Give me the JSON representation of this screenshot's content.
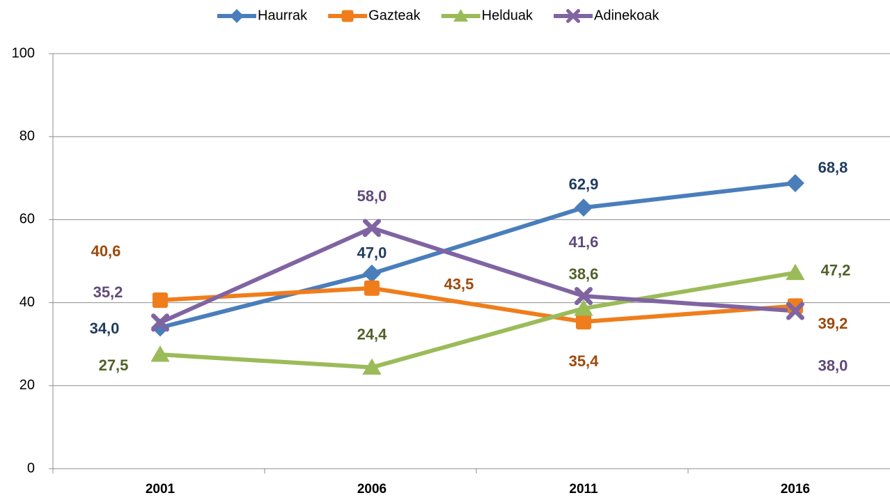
{
  "chart_data": {
    "type": "line",
    "categories": [
      "2001",
      "2006",
      "2011",
      "2016"
    ],
    "series": [
      {
        "name": "Haurrak",
        "color": "#4a7ebb",
        "label_color": "#1f3b5f",
        "marker": "diamond",
        "values": [
          34.0,
          47.0,
          62.9,
          68.8
        ],
        "value_labels": [
          "34,0",
          "47,0",
          "62,9",
          "68,8"
        ]
      },
      {
        "name": "Gazteak",
        "color": "#f07d1b",
        "label_color": "#9c4a0c",
        "marker": "square",
        "values": [
          40.6,
          43.5,
          35.4,
          39.2
        ],
        "value_labels": [
          "40,6",
          "43,5",
          "35,4",
          "39,2"
        ]
      },
      {
        "name": "Helduak",
        "color": "#9bbb59",
        "label_color": "#4f6228",
        "marker": "triangle",
        "values": [
          27.5,
          24.4,
          38.6,
          47.2
        ],
        "value_labels": [
          "27,5",
          "24,4",
          "38,6",
          "47,2"
        ]
      },
      {
        "name": "Adinekoak",
        "color": "#8064a2",
        "label_color": "#604a7b",
        "marker": "x",
        "values": [
          35.2,
          58.0,
          41.6,
          38.0
        ],
        "value_labels": [
          "35,2",
          "58,0",
          "41,6",
          "38,0"
        ]
      }
    ],
    "ylim": [
      0,
      100
    ],
    "yticks": [
      0,
      20,
      40,
      60,
      80,
      100
    ],
    "grid": true,
    "legend": "top"
  }
}
